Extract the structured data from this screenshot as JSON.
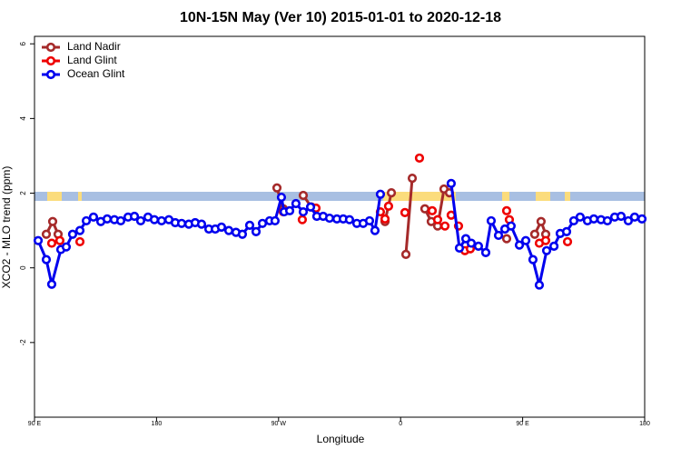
{
  "chart_data": {
    "type": "line",
    "title": "10N-15N May (Ver 10)   2015-01-01 to 2020-12-18",
    "x_label": "Longitude",
    "y_label": "XCO2 - MLO trend (ppm)",
    "xlim": [
      90,
      540
    ],
    "ylim": [
      -4,
      6.2
    ],
    "xticks": [
      {
        "value": 90,
        "label": "90 E"
      },
      {
        "value": 180,
        "label": "180"
      },
      {
        "value": 270,
        "label": "90 W"
      },
      {
        "value": 360,
        "label": "0"
      },
      {
        "value": 450,
        "label": "90 E"
      },
      {
        "value": 540,
        "label": "180"
      }
    ],
    "yticks": [
      -2,
      0,
      2,
      4,
      6
    ],
    "legend": "top-left",
    "series": [
      {
        "name": "Land Nadir",
        "color": "#a52a2a",
        "lines": true,
        "x": [
          98.7,
          103.4,
          107.4,
          null,
          268.8,
          273.5,
          null,
          288.2,
          294.2,
          null,
          348.5,
          353.2,
          null,
          363.9,
          368.6,
          null,
          377.9,
          382.6,
          387.3,
          392.0,
          396.0,
          null,
          438.2,
          null,
          458.9,
          463.6,
          467.0
        ],
        "values": [
          0.9,
          1.24,
          0.9,
          null,
          2.14,
          1.58,
          null,
          1.94,
          1.63,
          null,
          1.24,
          2.01,
          null,
          0.36,
          2.4,
          null,
          1.58,
          1.24,
          1.12,
          2.11,
          2.01,
          null,
          0.78,
          null,
          0.9,
          1.24,
          0.9
        ]
      },
      {
        "name": "Land Glint",
        "color": "#ee0000",
        "lines": false,
        "x": [
          102.7,
          108.7,
          123.5,
          273.5,
          287.5,
          297.6,
          345.1,
          348.5,
          351.1,
          363.2,
          373.9,
          383.3,
          387.3,
          392.7,
          397.3,
          402.7,
          407.4,
          411.4,
          438.2,
          440.2,
          462.3,
          467.0,
          483.1
        ],
        "values": [
          0.66,
          0.73,
          0.7,
          1.5,
          1.29,
          1.6,
          1.5,
          1.31,
          1.65,
          1.48,
          2.94,
          1.53,
          1.29,
          1.12,
          1.41,
          1.12,
          0.46,
          0.51,
          1.53,
          1.29,
          0.66,
          0.73,
          0.7
        ]
      },
      {
        "name": "Ocean Glint",
        "color": "#0000ee",
        "lines": true,
        "x": [
          92.7,
          98.7,
          102.7,
          109.4,
          113.4,
          118.1,
          123.5,
          128.2,
          133.5,
          138.9,
          143.6,
          148.9,
          153.6,
          159.0,
          163.7,
          168.3,
          173.7,
          178.4,
          183.7,
          189.1,
          193.8,
          198.5,
          203.8,
          208.5,
          213.2,
          218.6,
          223.3,
          227.9,
          233.3,
          238.6,
          243.3,
          248.7,
          253.4,
          258.1,
          263.4,
          267.4,
          272.1,
          274.1,
          278.2,
          282.8,
          288.2,
          293.6,
          298.2,
          302.9,
          307.6,
          313.0,
          317.7,
          322.3,
          327.7,
          332.4,
          337.1,
          341.1,
          345.1,
          null,
          397.3,
          403.4,
          408.1,
          412.1,
          417.4,
          422.8,
          426.8,
          432.2,
          436.9,
          441.5,
          447.6,
          452.3,
          457.6,
          462.3,
          467.7,
          473.1,
          477.7,
          482.4,
          487.7,
          492.4,
          497.8,
          502.5,
          507.8,
          512.5,
          517.9,
          522.6,
          527.9,
          532.6,
          538.0
        ],
        "values": [
          0.73,
          0.22,
          -0.44,
          0.49,
          0.56,
          0.9,
          1.0,
          1.26,
          1.36,
          1.24,
          1.31,
          1.29,
          1.26,
          1.36,
          1.38,
          1.26,
          1.36,
          1.29,
          1.26,
          1.29,
          1.21,
          1.19,
          1.17,
          1.21,
          1.17,
          1.04,
          1.04,
          1.09,
          1.0,
          0.95,
          0.9,
          1.14,
          0.97,
          1.19,
          1.26,
          1.26,
          1.89,
          1.5,
          1.53,
          1.72,
          1.5,
          1.63,
          1.38,
          1.38,
          1.33,
          1.31,
          1.31,
          1.29,
          1.19,
          1.19,
          1.26,
          1.0,
          1.97,
          null,
          2.26,
          0.53,
          0.78,
          0.66,
          0.58,
          0.41,
          1.26,
          0.87,
          1.04,
          1.12,
          0.61,
          0.73,
          0.22,
          -0.46,
          0.46,
          0.58,
          0.92,
          0.97,
          1.26,
          1.36,
          1.26,
          1.31,
          1.29,
          1.26,
          1.36,
          1.38,
          1.26,
          1.36,
          1.31
        ]
      }
    ]
  }
}
